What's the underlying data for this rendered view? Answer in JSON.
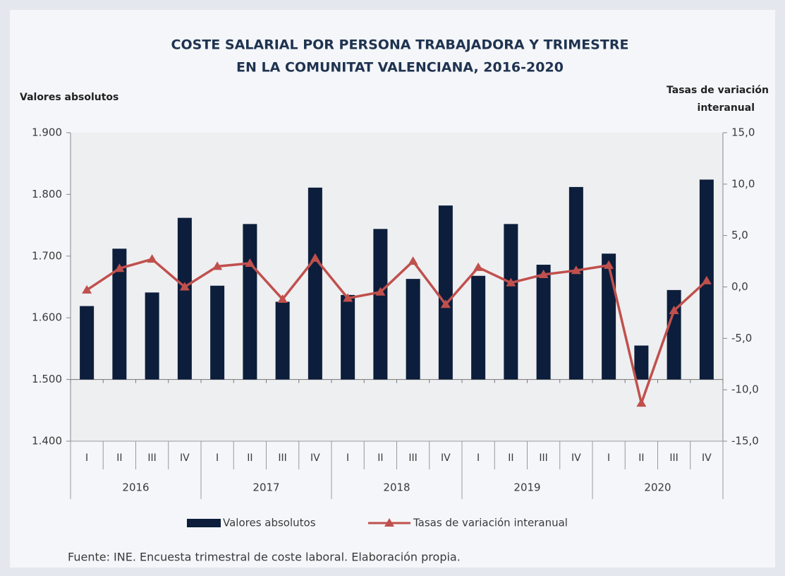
{
  "chart_data": {
    "type": "bar_line",
    "title": [
      "COSTE SALARIAL POR PERSONA TRABAJADORA Y TRIMESTRE",
      "EN LA COMUNITAT VALENCIANA, 2016-2020"
    ],
    "y_label": "Valores absolutos",
    "y2_label": [
      "Tasas de variación",
      "interanual"
    ],
    "source": "Fuente: INE. Encuesta trimestral de coste laboral. Elaboración propia.",
    "categories": [
      "I",
      "II",
      "III",
      "IV",
      "I",
      "II",
      "III",
      "IV",
      "I",
      "II",
      "III",
      "IV",
      "I",
      "II",
      "III",
      "IV",
      "I",
      "II",
      "III",
      "IV"
    ],
    "years": [
      "2016",
      "2017",
      "2018",
      "2019",
      "2020"
    ],
    "series": [
      {
        "name": "Valores absolutos",
        "type": "bar",
        "color": "#0c1e3b",
        "values": [
          1619,
          1712,
          1641,
          1762,
          1652,
          1752,
          1626,
          1811,
          1637,
          1744,
          1663,
          1782,
          1668,
          1752,
          1686,
          1812,
          1704,
          1555,
          1645,
          1824
        ]
      },
      {
        "name": "Tasas de variación interanual",
        "type": "line",
        "axis": "y2",
        "color": "#c0504d",
        "values": [
          -0.3,
          1.8,
          2.7,
          0.0,
          2.0,
          2.3,
          -1.2,
          2.8,
          -1.1,
          -0.5,
          2.5,
          -1.7,
          1.9,
          0.4,
          1.2,
          1.6,
          2.1,
          -11.3,
          -2.3,
          0.6
        ]
      }
    ],
    "bar_baseline": 1500,
    "ylim": [
      1400,
      1900
    ],
    "yticks": [
      {
        "value": 1400,
        "label": "1.400"
      },
      {
        "value": 1500,
        "label": "1.500"
      },
      {
        "value": 1600,
        "label": "1.600"
      },
      {
        "value": 1700,
        "label": "1.700"
      },
      {
        "value": 1800,
        "label": "1.800"
      },
      {
        "value": 1900,
        "label": "1.900"
      }
    ],
    "y2lim": [
      -15,
      15
    ],
    "y2ticks": [
      {
        "value": -15,
        "label": "-15,0"
      },
      {
        "value": -10,
        "label": "-10,0"
      },
      {
        "value": -5,
        "label": "-5,0"
      },
      {
        "value": 0,
        "label": "0,0"
      },
      {
        "value": 5,
        "label": "5,0"
      },
      {
        "value": 10,
        "label": "10,0"
      },
      {
        "value": 15,
        "label": "15,0"
      }
    ],
    "legend": "bottom"
  }
}
